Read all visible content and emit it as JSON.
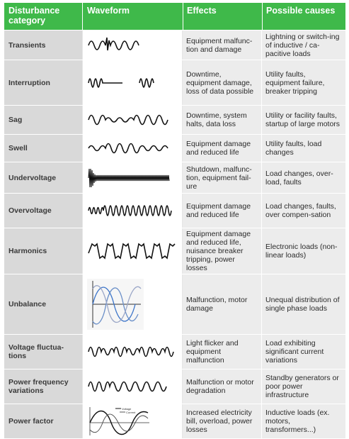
{
  "header": {
    "col1": "Disturbance category",
    "col2": "Waveform",
    "col3": "Effects",
    "col4": "Possible causes"
  },
  "rows": [
    {
      "category": "Transients",
      "effects": "Equipment malfunc-tion and damage",
      "causes": "Lightning or switch-ing of inductive / ca-pacitive loads",
      "waveform_icon": "transient-waveform-icon"
    },
    {
      "category": "Interruption",
      "effects": "Downtime, equipment damage, loss of data possible",
      "causes": "Utility faults, equipment failure, breaker tripping",
      "waveform_icon": "interruption-waveform-icon"
    },
    {
      "category": "Sag",
      "effects": "Downtime, system halts, data loss",
      "causes": "Utility or facility faults, startup of large motors",
      "waveform_icon": "sag-waveform-icon"
    },
    {
      "category": "Swell",
      "effects": "Equipment damage and reduced life",
      "causes": "Utility faults, load changes",
      "waveform_icon": "swell-waveform-icon"
    },
    {
      "category": "Undervoltage",
      "effects": "Shutdown, malfunc-tion, equipment fail-ure",
      "causes": "Load changes, over-load, faults",
      "waveform_icon": "undervoltage-waveform-icon"
    },
    {
      "category": "Overvoltage",
      "effects": "Equipment damage and reduced life",
      "causes": "Load changes, faults, over compen-sation",
      "waveform_icon": "overvoltage-waveform-icon"
    },
    {
      "category": "Harmonics",
      "effects": "Equipment damage and reduced life, nuisance breaker tripping, power losses",
      "causes": "Electronic loads (non-linear loads)",
      "waveform_icon": "harmonics-waveform-icon"
    },
    {
      "category": "Unbalance",
      "effects": "Malfunction, motor damage",
      "causes": "Unequal distribution of single phase loads",
      "waveform_icon": "unbalance-waveform-icon"
    },
    {
      "category": "Voltage fluctua-tions",
      "effects": "Light flicker and equipment malfunction",
      "causes": "Load exhibiting significant current variations",
      "waveform_icon": "fluctuation-waveform-icon"
    },
    {
      "category": "Power frequency variations",
      "effects": "Malfunction or motor degradation",
      "causes": "Standby generators or poor power infrastructure",
      "waveform_icon": "frequency-waveform-icon"
    },
    {
      "category": "Power factor",
      "effects": "Increased electricity bill, overload, power losses",
      "causes": "Inductive loads (ex. motors, transformers...)",
      "waveform_icon": "power-factor-waveform-icon"
    }
  ],
  "power_factor_legend": {
    "voltage": "Voltage",
    "current": "Current"
  }
}
